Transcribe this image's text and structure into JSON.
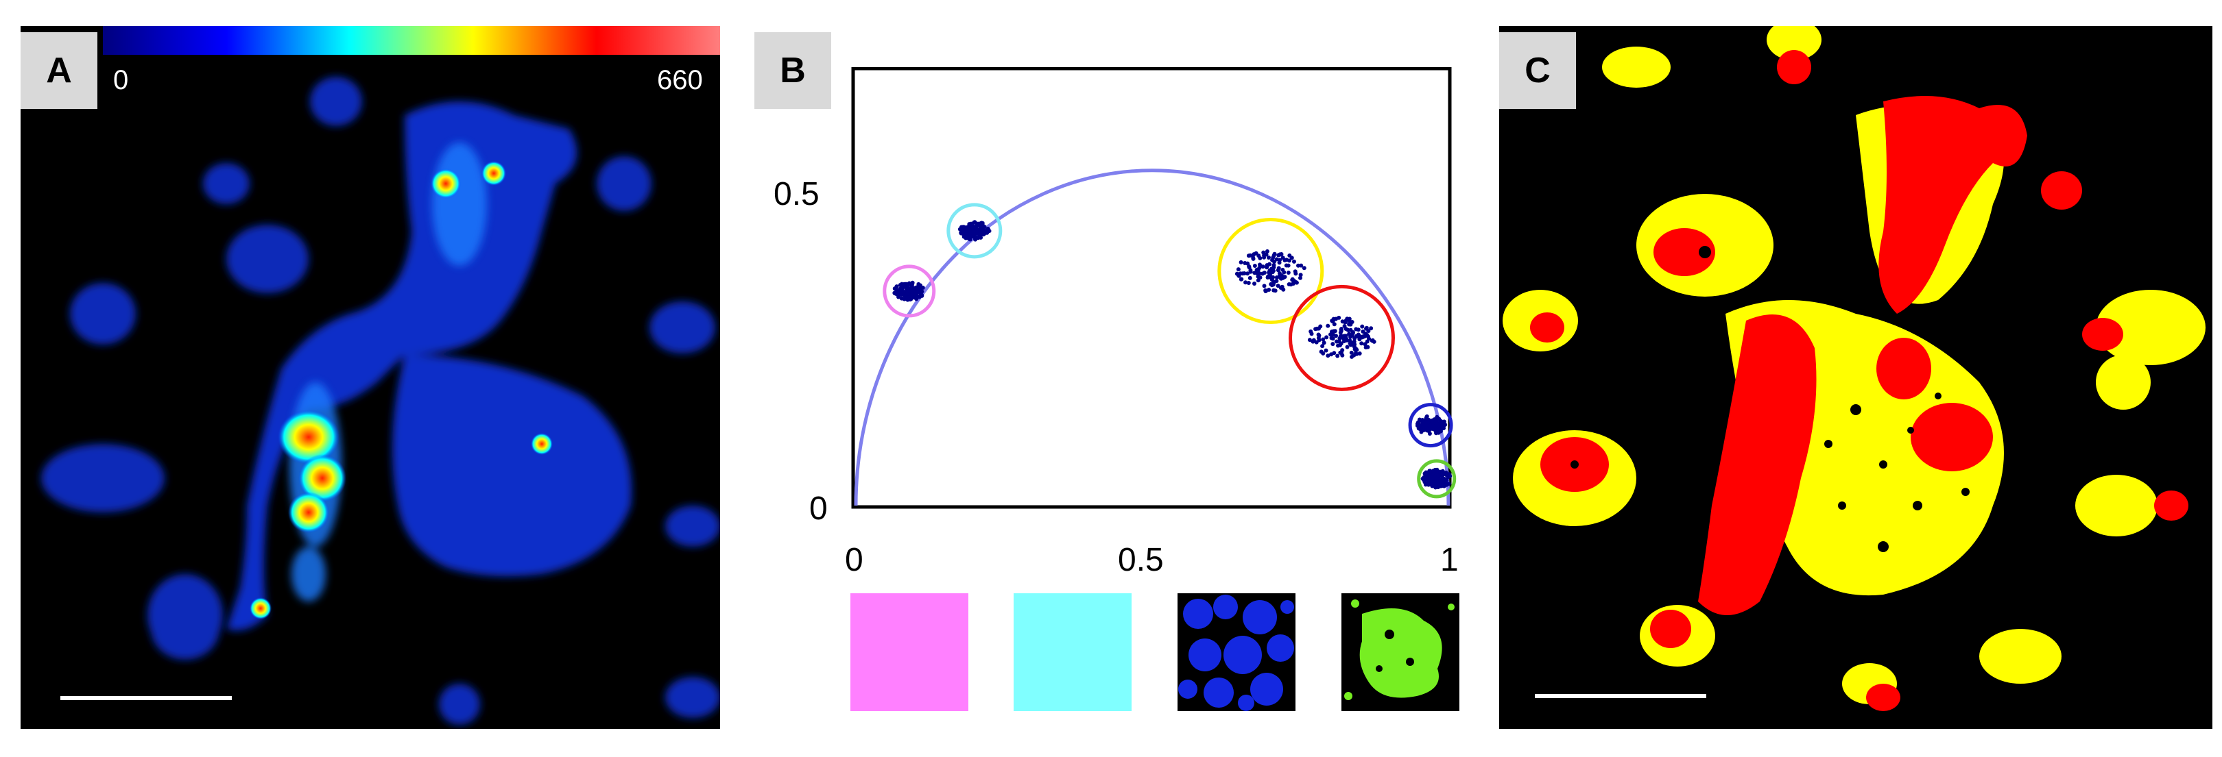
{
  "panels": {
    "a": {
      "letter": "A",
      "colorbar": {
        "min_label": "0",
        "max_label": "660"
      }
    },
    "b": {
      "letter": "B"
    },
    "c": {
      "letter": "C"
    }
  },
  "colors": {
    "phasor_arc": "#8080ee",
    "cluster_dots": "#00008b",
    "circle_magenta": "#ee82ee",
    "circle_cyan": "#7fe8f4",
    "circle_yellow": "#ffee00",
    "circle_red": "#ee1111",
    "circle_blue": "#1e22cc",
    "circle_green": "#66cc33",
    "swatch_magenta": "#ff80ff",
    "swatch_cyan": "#80ffff",
    "map_red": "#ff0000",
    "map_yellow": "#ffff00"
  },
  "chart_data": {
    "type": "scatter",
    "title": "",
    "xlabel": "",
    "ylabel": "",
    "xlim": [
      0,
      1
    ],
    "ylim": [
      0,
      0.65
    ],
    "x_tick_labels": [
      "0",
      "0.5",
      "1"
    ],
    "y_tick_labels": [
      "0",
      "0.5"
    ],
    "universal_semicircle": true,
    "clusters": [
      {
        "color": "magenta",
        "x": 0.09,
        "y": 0.32
      },
      {
        "color": "cyan",
        "x": 0.2,
        "y": 0.41
      },
      {
        "color": "yellow",
        "x": 0.7,
        "y": 0.35
      },
      {
        "color": "red",
        "x": 0.82,
        "y": 0.25
      },
      {
        "color": "blue",
        "x": 0.97,
        "y": 0.12
      },
      {
        "color": "green",
        "x": 0.98,
        "y": 0.04
      }
    ]
  }
}
